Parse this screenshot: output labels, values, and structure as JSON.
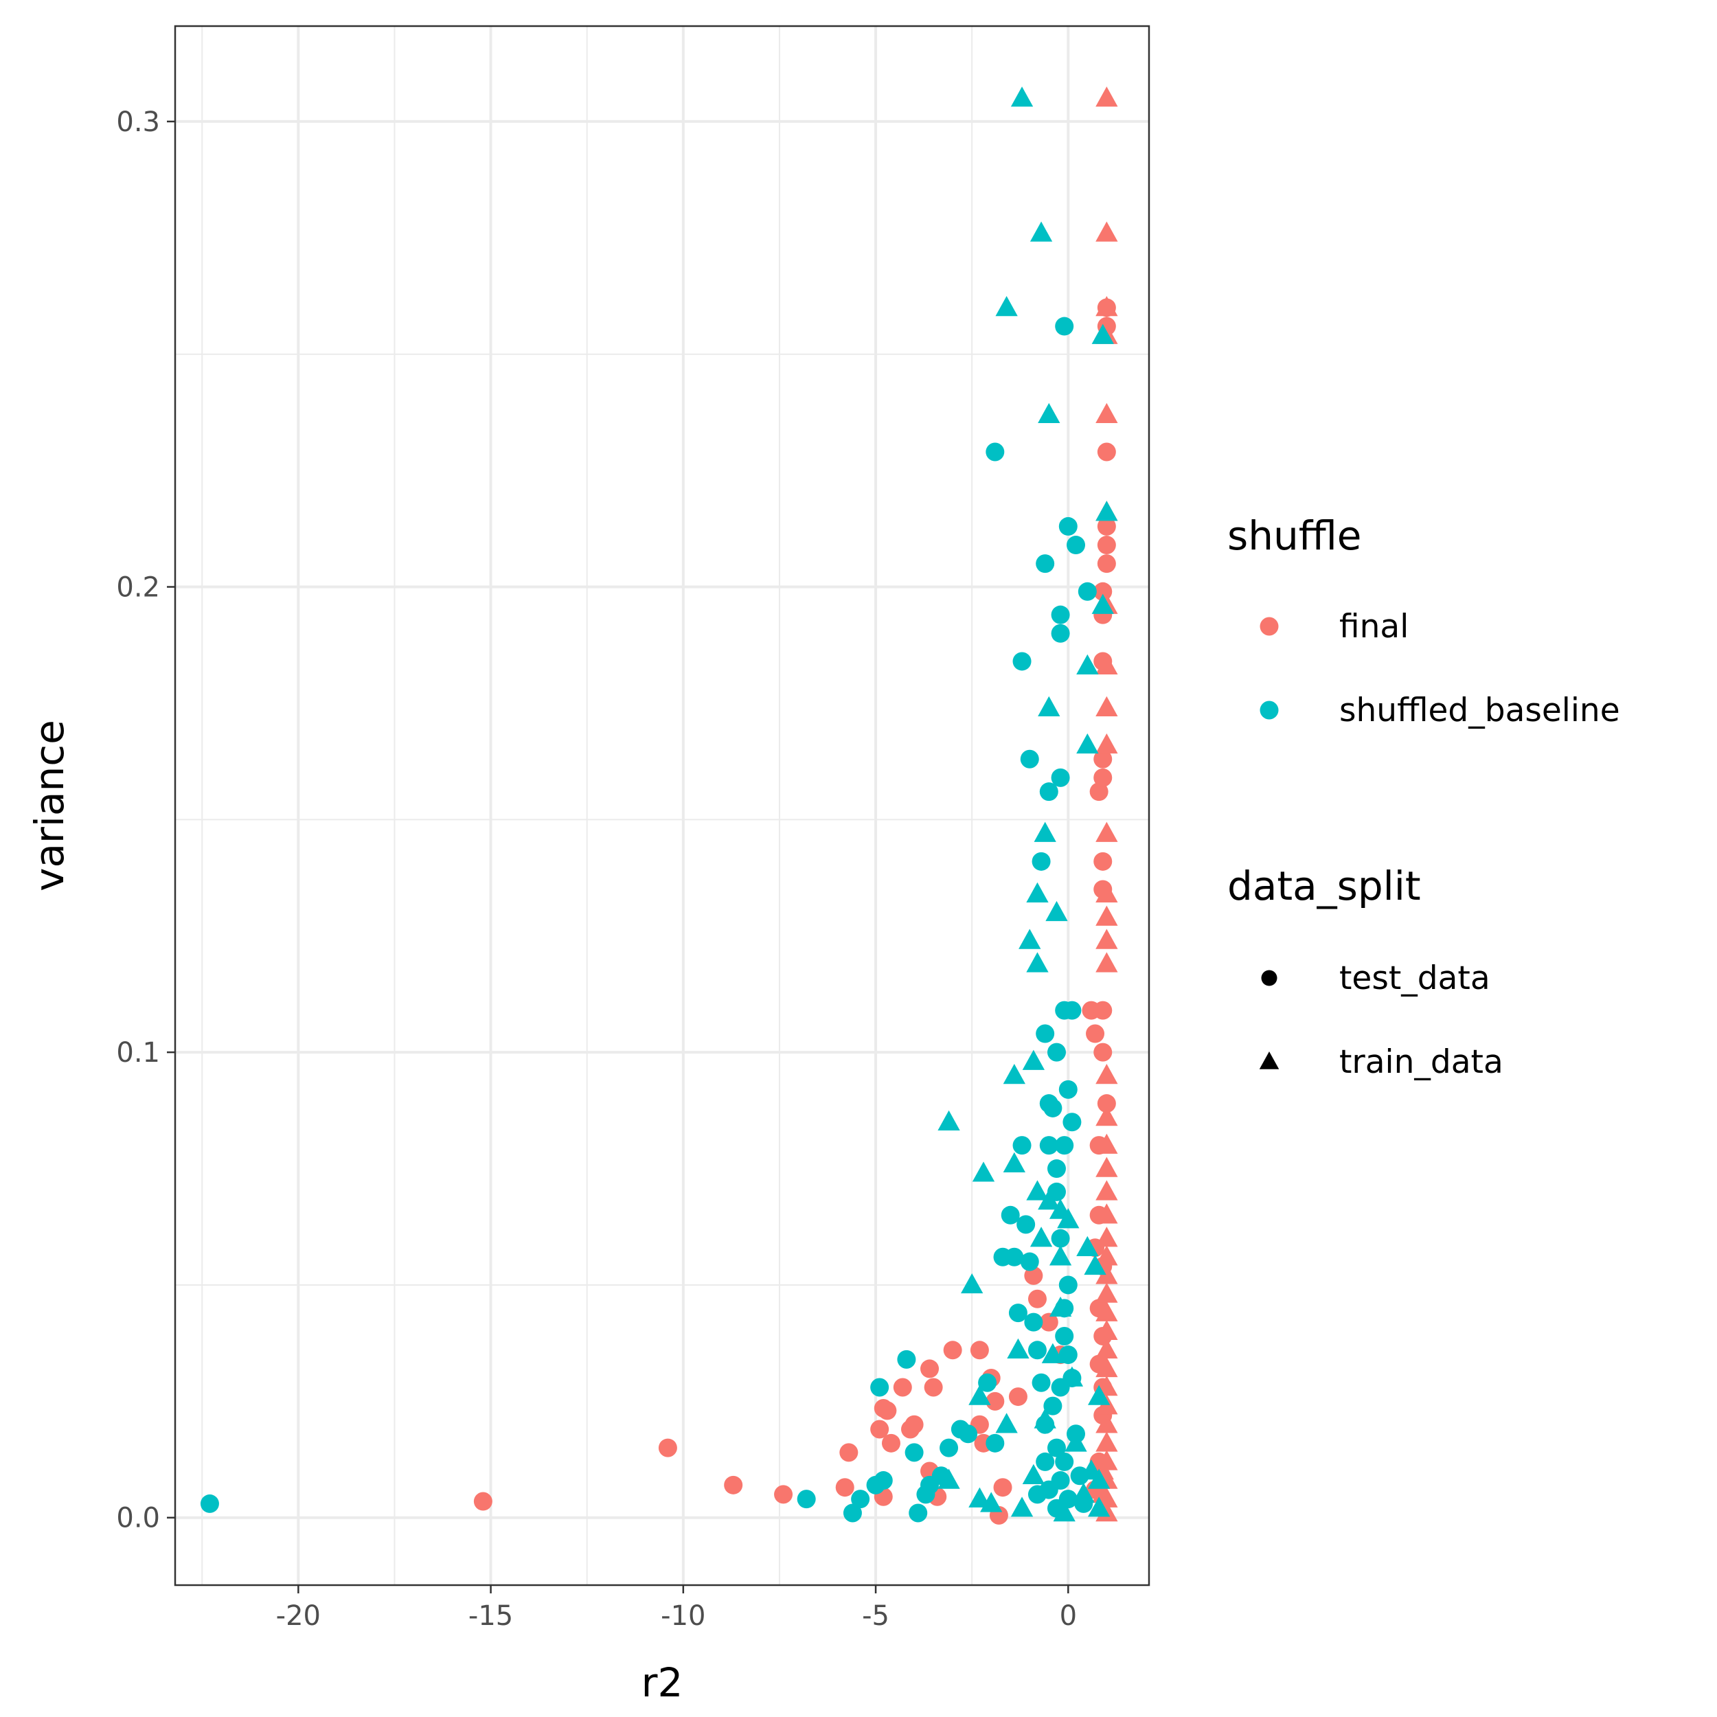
{
  "chart_data": {
    "type": "scatter",
    "title": "",
    "xlabel": "r2",
    "ylabel": "variance",
    "xlim": [
      -23.2,
      2.1
    ],
    "ylim": [
      -0.0145,
      0.3205
    ],
    "x_ticks": [
      -20,
      -15,
      -10,
      -5,
      0
    ],
    "x_tick_labels": [
      "-20",
      "-15",
      "-10",
      "-5",
      "0"
    ],
    "y_ticks": [
      0.0,
      0.1,
      0.2,
      0.3
    ],
    "y_tick_labels": [
      "0.0",
      "0.1",
      "0.2",
      "0.3"
    ],
    "grid": true,
    "legend_position": "right",
    "color_legend": {
      "title": "shuffle",
      "entries": [
        {
          "label": "final",
          "color": "#F8766D"
        },
        {
          "label": "shuffled_baseline",
          "color": "#00BFC4"
        }
      ]
    },
    "shape_legend": {
      "title": "data_split",
      "entries": [
        {
          "label": "test_data",
          "shape": "circle"
        },
        {
          "label": "train_data",
          "shape": "triangle"
        }
      ]
    },
    "series": [
      {
        "shuffle": "final",
        "data_split": "test_data",
        "points": [
          [
            -15.2,
            0.0035
          ],
          [
            -10.4,
            0.015
          ],
          [
            -8.7,
            0.007
          ],
          [
            -7.4,
            0.005
          ],
          [
            -5.8,
            0.0065
          ],
          [
            -5.7,
            0.014
          ],
          [
            -4.9,
            0.019
          ],
          [
            -4.8,
            0.0235
          ],
          [
            -4.7,
            0.023
          ],
          [
            -4.6,
            0.016
          ],
          [
            -4.8,
            0.0045
          ],
          [
            -4.3,
            0.028
          ],
          [
            -4.1,
            0.019
          ],
          [
            -4.0,
            0.02
          ],
          [
            -3.6,
            0.032
          ],
          [
            -3.5,
            0.028
          ],
          [
            -3.6,
            0.01
          ],
          [
            -3.4,
            0.0045
          ],
          [
            -3.0,
            0.036
          ],
          [
            -2.3,
            0.036
          ],
          [
            -2.0,
            0.03
          ],
          [
            -1.9,
            0.025
          ],
          [
            -2.3,
            0.02
          ],
          [
            -2.2,
            0.016
          ],
          [
            -1.7,
            0.0065
          ],
          [
            -1.8,
            0.0005
          ],
          [
            -1.3,
            0.026
          ],
          [
            -0.9,
            0.052
          ],
          [
            -0.8,
            0.047
          ],
          [
            -0.5,
            0.042
          ],
          [
            -0.2,
            0.035
          ],
          [
            0.6,
            0.109
          ],
          [
            0.9,
            0.109
          ],
          [
            0.7,
            0.104
          ],
          [
            0.9,
            0.1
          ],
          [
            1.0,
            0.089
          ],
          [
            0.8,
            0.08
          ],
          [
            0.8,
            0.065
          ],
          [
            0.7,
            0.058
          ],
          [
            0.9,
            0.054
          ],
          [
            0.8,
            0.045
          ],
          [
            0.9,
            0.039
          ],
          [
            0.8,
            0.033
          ],
          [
            0.9,
            0.028
          ],
          [
            0.9,
            0.022
          ],
          [
            0.8,
            0.012
          ],
          [
            0.7,
            0.006
          ],
          [
            0.9,
            0.135
          ],
          [
            0.9,
            0.141
          ],
          [
            0.8,
            0.156
          ],
          [
            0.9,
            0.159
          ],
          [
            0.9,
            0.163
          ],
          [
            0.9,
            0.184
          ],
          [
            0.9,
            0.194
          ],
          [
            0.9,
            0.199
          ],
          [
            1.0,
            0.205
          ],
          [
            1.0,
            0.209
          ],
          [
            1.0,
            0.213
          ],
          [
            1.0,
            0.229
          ],
          [
            1.0,
            0.256
          ],
          [
            1.0,
            0.26
          ]
        ]
      },
      {
        "shuffle": "final",
        "data_split": "train_data",
        "points": [
          [
            1.0,
            0.305
          ],
          [
            1.0,
            0.276
          ],
          [
            1.0,
            0.26
          ],
          [
            1.0,
            0.254
          ],
          [
            1.0,
            0.237
          ],
          [
            1.0,
            0.216
          ],
          [
            1.0,
            0.196
          ],
          [
            1.0,
            0.183
          ],
          [
            1.0,
            0.174
          ],
          [
            1.0,
            0.166
          ],
          [
            1.0,
            0.147
          ],
          [
            1.0,
            0.134
          ],
          [
            1.0,
            0.129
          ],
          [
            1.0,
            0.124
          ],
          [
            1.0,
            0.119
          ],
          [
            1.0,
            0.095
          ],
          [
            1.0,
            0.086
          ],
          [
            1.0,
            0.08
          ],
          [
            1.0,
            0.075
          ],
          [
            1.0,
            0.07
          ],
          [
            1.0,
            0.065
          ],
          [
            1.0,
            0.06
          ],
          [
            1.0,
            0.056
          ],
          [
            1.0,
            0.052
          ],
          [
            1.0,
            0.048
          ],
          [
            1.0,
            0.044
          ],
          [
            1.0,
            0.04
          ],
          [
            1.0,
            0.036
          ],
          [
            1.0,
            0.032
          ],
          [
            1.0,
            0.028
          ],
          [
            1.0,
            0.024
          ],
          [
            1.0,
            0.02
          ],
          [
            1.0,
            0.016
          ],
          [
            1.0,
            0.012
          ],
          [
            1.0,
            0.008
          ],
          [
            1.0,
            0.004
          ],
          [
            1.0,
            0.001
          ],
          [
            0.9,
            0.005
          ],
          [
            0.9,
            0.01
          ]
        ]
      },
      {
        "shuffle": "shuffled_baseline",
        "data_split": "test_data",
        "points": [
          [
            -22.3,
            0.003
          ],
          [
            -6.8,
            0.004
          ],
          [
            -5.6,
            0.001
          ],
          [
            -5.4,
            0.004
          ],
          [
            -5.0,
            0.007
          ],
          [
            -4.8,
            0.008
          ],
          [
            -4.9,
            0.028
          ],
          [
            -4.2,
            0.034
          ],
          [
            -4.0,
            0.014
          ],
          [
            -3.9,
            0.001
          ],
          [
            -3.7,
            0.005
          ],
          [
            -3.6,
            0.007
          ],
          [
            -3.3,
            0.009
          ],
          [
            -3.1,
            0.015
          ],
          [
            -2.8,
            0.019
          ],
          [
            -2.6,
            0.018
          ],
          [
            -2.1,
            0.029
          ],
          [
            -1.9,
            0.016
          ],
          [
            -1.7,
            0.056
          ],
          [
            -1.5,
            0.065
          ],
          [
            -1.4,
            0.056
          ],
          [
            -1.3,
            0.044
          ],
          [
            -1.2,
            0.08
          ],
          [
            -1.1,
            0.063
          ],
          [
            -1.0,
            0.055
          ],
          [
            -0.9,
            0.042
          ],
          [
            -0.8,
            0.036
          ],
          [
            -0.7,
            0.029
          ],
          [
            -0.6,
            0.02
          ],
          [
            -0.5,
            0.089
          ],
          [
            -0.4,
            0.088
          ],
          [
            -0.3,
            0.07
          ],
          [
            -0.2,
            0.06
          ],
          [
            -0.1,
            0.045
          ],
          [
            0.0,
            0.035
          ],
          [
            -0.5,
            0.08
          ],
          [
            -0.3,
            0.075
          ],
          [
            0.0,
            0.092
          ],
          [
            -0.1,
            0.08
          ],
          [
            0.1,
            0.085
          ],
          [
            -0.6,
            0.104
          ],
          [
            -0.3,
            0.1
          ],
          [
            -0.1,
            0.109
          ],
          [
            0.1,
            0.109
          ],
          [
            -0.7,
            0.141
          ],
          [
            -0.5,
            0.156
          ],
          [
            -0.2,
            0.159
          ],
          [
            -1.0,
            0.163
          ],
          [
            -1.2,
            0.184
          ],
          [
            -0.2,
            0.19
          ],
          [
            -0.2,
            0.194
          ],
          [
            0.5,
            0.199
          ],
          [
            -0.6,
            0.205
          ],
          [
            0.2,
            0.209
          ],
          [
            0.0,
            0.213
          ],
          [
            -1.9,
            0.229
          ],
          [
            -0.1,
            0.256
          ],
          [
            -0.3,
            0.002
          ],
          [
            -0.5,
            0.006
          ],
          [
            -0.1,
            0.012
          ],
          [
            0.2,
            0.018
          ],
          [
            -0.4,
            0.024
          ],
          [
            0.1,
            0.03
          ],
          [
            -0.2,
            0.008
          ],
          [
            0.0,
            0.004
          ],
          [
            -0.6,
            0.012
          ],
          [
            0.3,
            0.009
          ],
          [
            -0.8,
            0.005
          ],
          [
            0.4,
            0.003
          ],
          [
            -0.3,
            0.015
          ],
          [
            -0.2,
            0.028
          ],
          [
            -0.1,
            0.039
          ],
          [
            0.0,
            0.05
          ]
        ]
      },
      {
        "shuffle": "shuffled_baseline",
        "data_split": "train_data",
        "points": [
          [
            -1.2,
            0.305
          ],
          [
            -0.7,
            0.276
          ],
          [
            -1.6,
            0.26
          ],
          [
            0.9,
            0.254
          ],
          [
            -0.5,
            0.237
          ],
          [
            1.0,
            0.216
          ],
          [
            0.9,
            0.196
          ],
          [
            0.5,
            0.183
          ],
          [
            -0.5,
            0.174
          ],
          [
            0.5,
            0.166
          ],
          [
            -0.6,
            0.147
          ],
          [
            -0.8,
            0.134
          ],
          [
            -0.3,
            0.13
          ],
          [
            -1.0,
            0.124
          ],
          [
            -0.8,
            0.119
          ],
          [
            -1.4,
            0.095
          ],
          [
            -0.9,
            0.098
          ],
          [
            -3.1,
            0.085
          ],
          [
            -2.2,
            0.074
          ],
          [
            -1.4,
            0.076
          ],
          [
            -0.8,
            0.07
          ],
          [
            -0.5,
            0.068
          ],
          [
            -0.2,
            0.066
          ],
          [
            0.0,
            0.064
          ],
          [
            -2.5,
            0.05
          ],
          [
            -0.7,
            0.06
          ],
          [
            -0.2,
            0.056
          ],
          [
            -1.3,
            0.036
          ],
          [
            -2.3,
            0.026
          ],
          [
            -1.6,
            0.02
          ],
          [
            -3.1,
            0.008
          ],
          [
            -2.3,
            0.004
          ],
          [
            -2.0,
            0.003
          ],
          [
            0.5,
            0.058
          ],
          [
            0.7,
            0.054
          ],
          [
            0.8,
            0.026
          ],
          [
            0.8,
            0.008
          ],
          [
            0.8,
            0.002
          ],
          [
            0.6,
            0.01
          ],
          [
            0.4,
            0.005
          ],
          [
            -0.1,
            0.001
          ],
          [
            -1.2,
            0.002
          ],
          [
            -0.4,
            0.035
          ],
          [
            -0.2,
            0.045
          ],
          [
            0.1,
            0.03
          ],
          [
            -0.6,
            0.021
          ],
          [
            0.2,
            0.016
          ],
          [
            -0.9,
            0.009
          ]
        ]
      }
    ]
  }
}
